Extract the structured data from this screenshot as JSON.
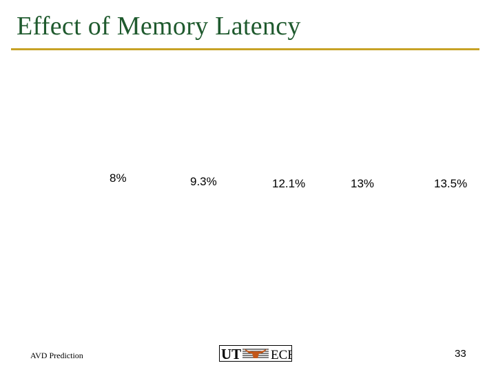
{
  "slide": {
    "title": "Effect of Memory Latency",
    "accent_color": "#c7a225",
    "title_color": "#1f5a2e"
  },
  "values": [
    "8%",
    "9.3%",
    "12.1%",
    "13%",
    "13.5%"
  ],
  "footer": {
    "left_text": "AVD Prediction",
    "page_number": "33",
    "logo": {
      "left": "UT",
      "right": "ECE",
      "icon": "longhorn-icon",
      "color": "#c2571a"
    }
  }
}
